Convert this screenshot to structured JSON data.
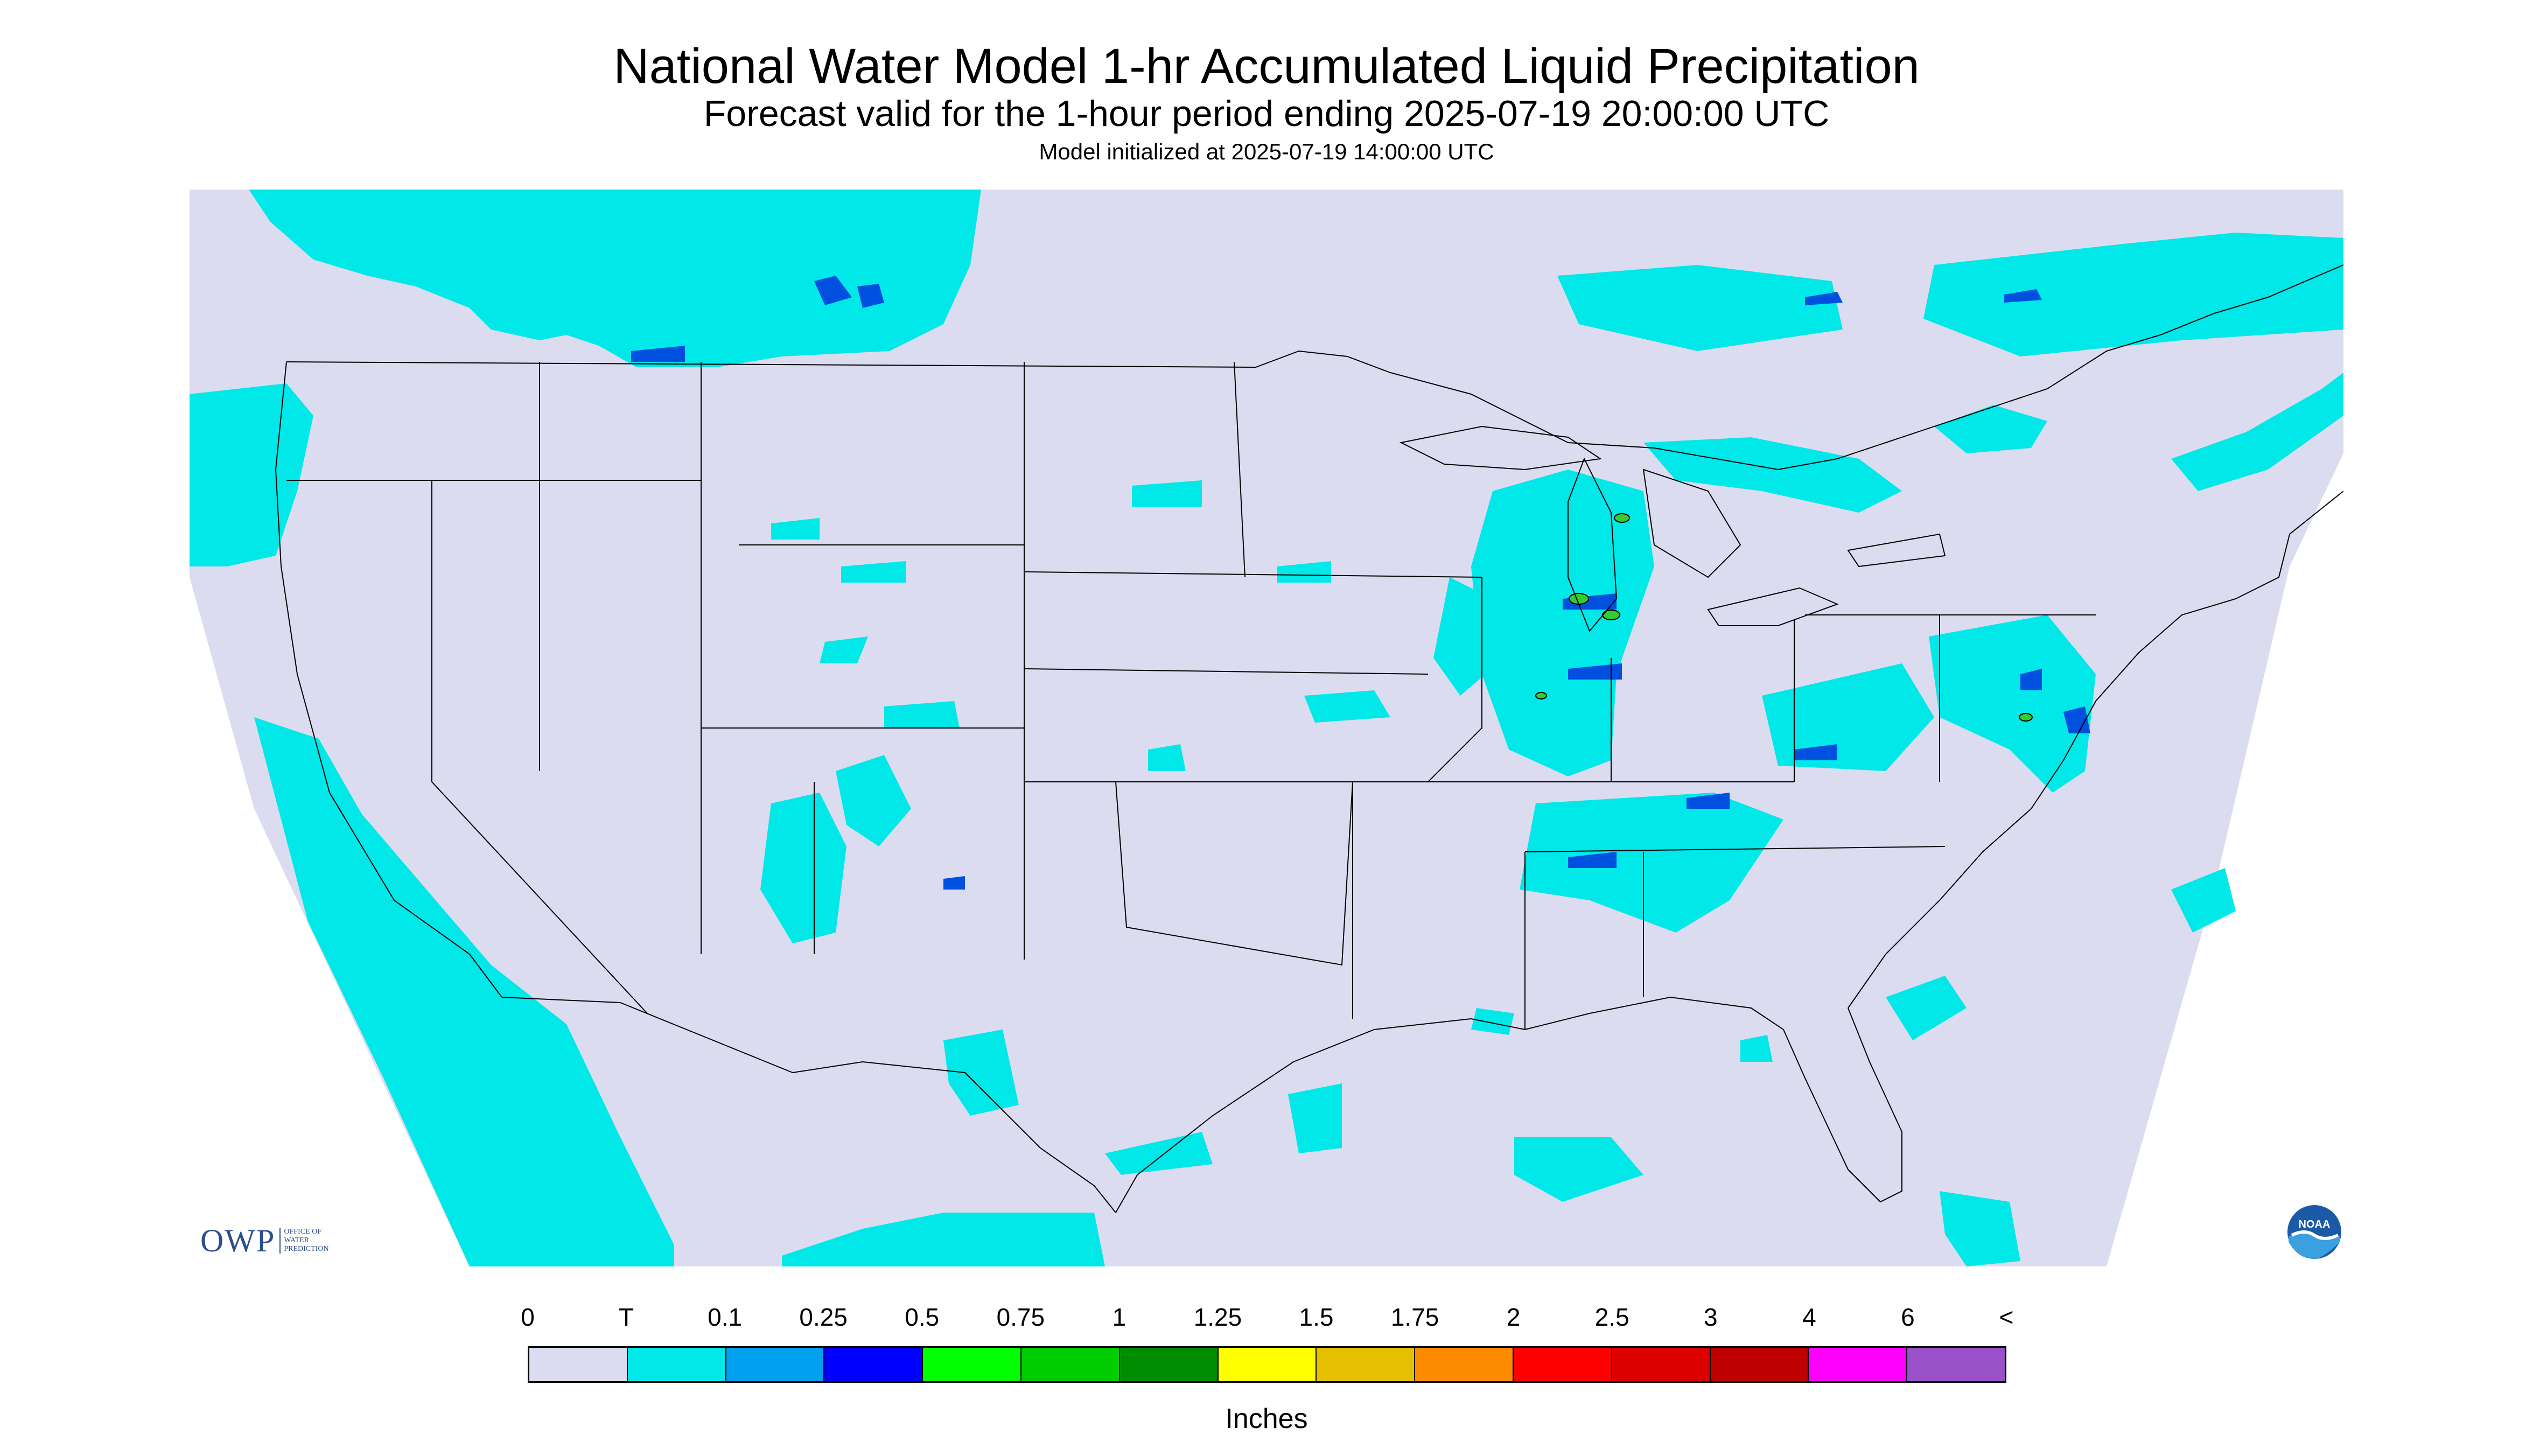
{
  "header": {
    "title": "National Water Model 1-hr Accumulated Liquid Precipitation",
    "subtitle": "Forecast valid for the 1-hour period ending 2025-07-19 20:00:00 UTC",
    "init": "Model initialized at 2025-07-19 14:00:00 UTC"
  },
  "logos": {
    "owp_text": "OWP",
    "owp_sub_lines": [
      "OFFICE OF",
      "WATER",
      "PREDICTION"
    ],
    "noaa_text": "NOAA"
  },
  "legend": {
    "labels": [
      "0",
      "T",
      "0.1",
      "0.25",
      "0.5",
      "0.75",
      "1",
      "1.25",
      "1.5",
      "1.75",
      "2",
      "2.5",
      "3",
      "4",
      "6",
      "<"
    ],
    "colors": [
      "#dcdcf0",
      "#00e8e8",
      "#00a0ee",
      "#0000ff",
      "#00ff00",
      "#00cc00",
      "#008c00",
      "#ffff00",
      "#e6c000",
      "#ff8c00",
      "#ff0000",
      "#dd0000",
      "#be0000",
      "#ff00ff",
      "#9a50c8"
    ],
    "units": "Inches"
  },
  "colors": {
    "background_domain": "#dcdcf0",
    "trace": "#00e8e8",
    "light": "#00a0ee",
    "moderate": "#0000ff",
    "heavy": "#00ff00"
  }
}
